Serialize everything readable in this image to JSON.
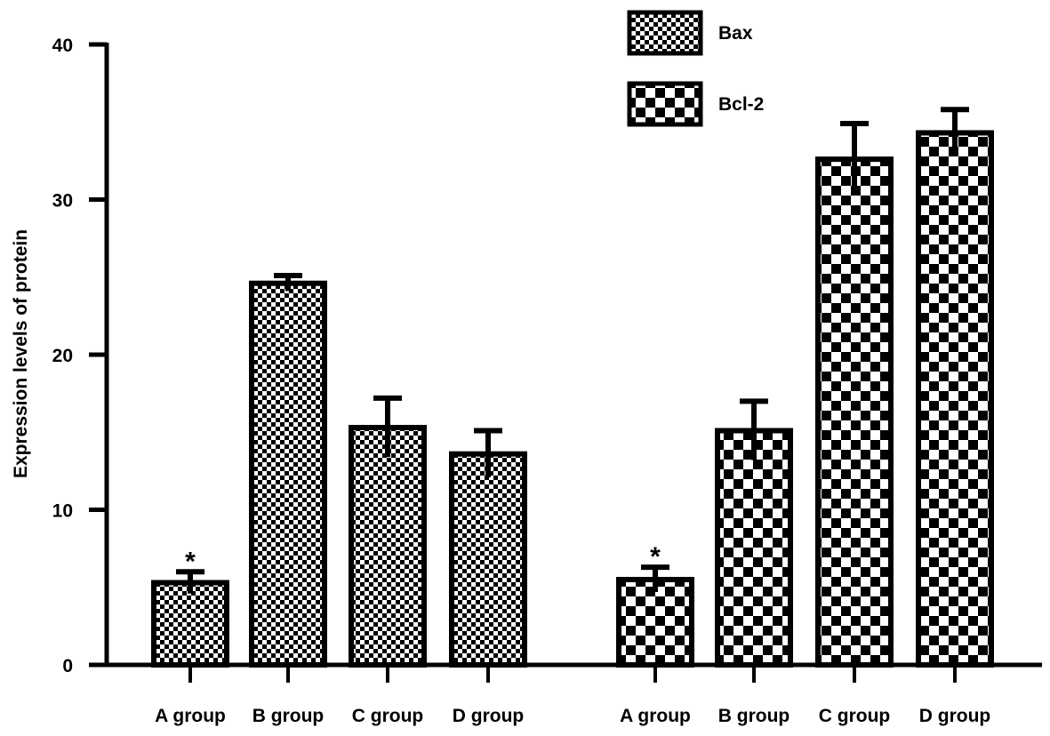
{
  "chart_data": {
    "type": "bar",
    "ylabel": "Expression levels of protein",
    "ylim": [
      0,
      40
    ],
    "yticks": [
      0,
      10,
      20,
      30,
      40
    ],
    "legend_position": "top-right",
    "series": [
      {
        "name": "Bax",
        "pattern": "fine-checker",
        "categories": [
          "A group",
          "B group",
          "C group",
          "D group"
        ],
        "values": [
          5.3,
          24.6,
          15.3,
          13.6
        ],
        "errors": [
          0.7,
          0.5,
          1.9,
          1.5
        ],
        "annotations": [
          "*",
          "",
          "",
          ""
        ]
      },
      {
        "name": "Bcl-2",
        "pattern": "coarse-checker",
        "categories": [
          "A group",
          "B group",
          "C group",
          "D group"
        ],
        "values": [
          5.5,
          15.1,
          32.6,
          34.3
        ],
        "errors": [
          0.8,
          1.9,
          2.3,
          1.5
        ],
        "annotations": [
          "*",
          "",
          "",
          ""
        ]
      }
    ],
    "colors": {
      "bar_stroke": "#000000",
      "checker_dark": "#000000",
      "checker_light": "#ffffff"
    }
  }
}
